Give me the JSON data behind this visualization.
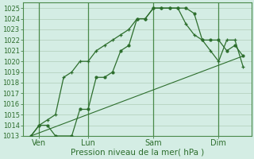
{
  "bg_color": "#d4ede4",
  "grid_color": "#b0ccb8",
  "line_color": "#2d6e2d",
  "xlabel": "Pression niveau de la mer( hPa )",
  "ylim": [
    1013,
    1025.5
  ],
  "yticks": [
    1013,
    1014,
    1015,
    1016,
    1017,
    1018,
    1019,
    1020,
    1021,
    1022,
    1023,
    1024,
    1025
  ],
  "xtick_labels": [
    "Ven",
    "Lun",
    "Sam",
    "Dim"
  ],
  "xtick_positions": [
    1,
    4,
    8,
    12
  ],
  "xlim": [
    0,
    14
  ],
  "vline_positions": [
    1,
    4,
    8,
    12
  ],
  "series1_x": [
    0.5,
    1.0,
    1.5,
    2.0,
    3.0,
    3.5,
    4.0,
    4.5,
    5.0,
    5.5,
    6.0,
    6.5,
    7.0,
    7.5,
    8.0,
    8.5,
    9.0,
    9.5,
    10.0,
    10.5,
    11.0,
    11.5,
    12.0,
    12.5,
    13.0,
    13.5
  ],
  "series1_y": [
    1013.0,
    1014.0,
    1014.0,
    1013.0,
    1013.0,
    1015.5,
    1015.5,
    1018.5,
    1018.5,
    1019.0,
    1021.0,
    1021.5,
    1024.0,
    1024.0,
    1025.0,
    1025.0,
    1025.0,
    1025.0,
    1025.0,
    1024.5,
    1022.0,
    1022.0,
    1022.0,
    1021.0,
    1021.5,
    1020.5
  ],
  "series2_x": [
    0.5,
    1.0,
    1.5,
    2.0,
    2.5,
    3.0,
    3.5,
    4.0,
    4.5,
    5.0,
    5.5,
    6.0,
    6.5,
    7.0,
    7.5,
    8.0,
    8.5,
    9.0,
    9.5,
    10.0,
    10.5,
    11.0,
    11.5,
    12.0,
    12.5,
    13.0,
    13.5
  ],
  "series2_y": [
    1013.0,
    1014.0,
    1014.5,
    1015.0,
    1018.5,
    1019.0,
    1020.0,
    1020.0,
    1021.0,
    1021.5,
    1022.0,
    1022.5,
    1023.0,
    1024.0,
    1024.0,
    1025.0,
    1025.0,
    1025.0,
    1025.0,
    1023.5,
    1022.5,
    1022.0,
    1021.0,
    1020.0,
    1022.0,
    1022.0,
    1019.5
  ],
  "series3_x": [
    0.5,
    13.5
  ],
  "series3_y": [
    1013.0,
    1020.5
  ],
  "ytick_fontsize": 6.0,
  "xtick_fontsize": 7.0,
  "xlabel_fontsize": 7.5
}
